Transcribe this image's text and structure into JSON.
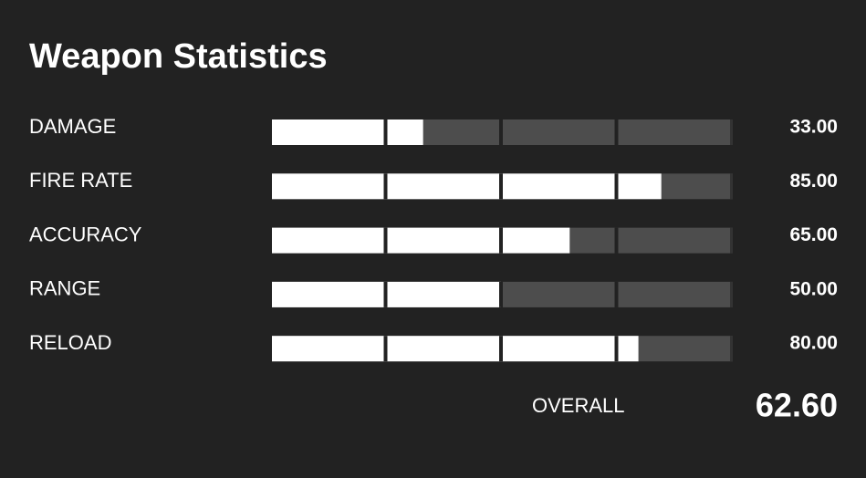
{
  "title": "Weapon Statistics",
  "scale": [
    0,
    100
  ],
  "stats": [
    {
      "label": "DAMAGE",
      "value": 33,
      "value_label": "33.00"
    },
    {
      "label": "FIRE RATE",
      "value": 85,
      "value_label": "85.00"
    },
    {
      "label": "ACCURACY",
      "value": 65,
      "value_label": "65.00"
    },
    {
      "label": "RANGE",
      "value": 50,
      "value_label": "50.00"
    },
    {
      "label": "RELOAD",
      "value": 80,
      "value_label": "80.00"
    }
  ],
  "overall": {
    "label": "OVERALL",
    "value": 62.6,
    "value_label": "62.60"
  }
}
